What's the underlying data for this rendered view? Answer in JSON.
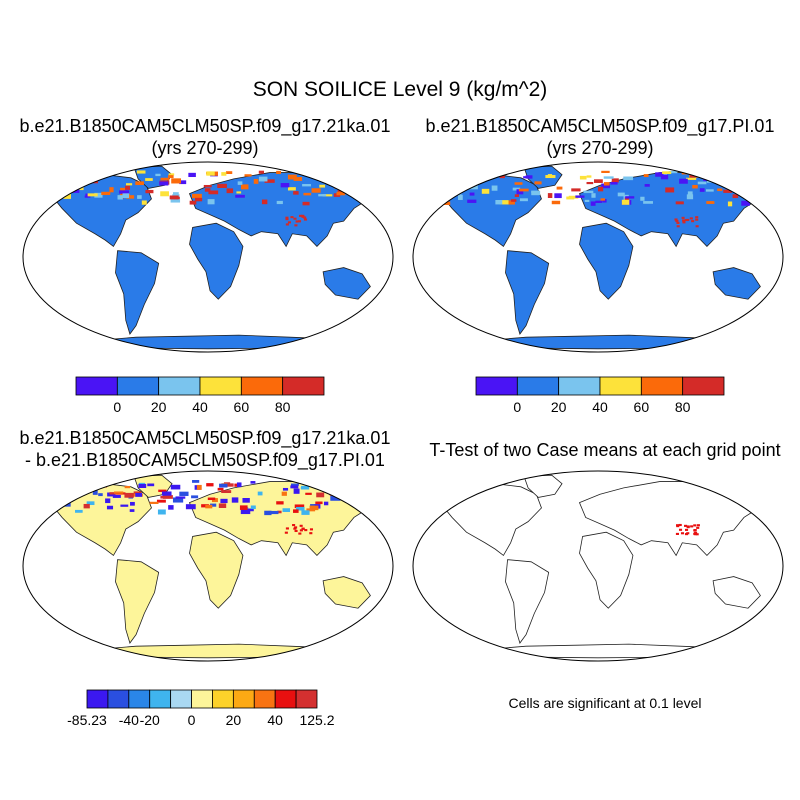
{
  "figure": {
    "title": "SON SOILICE Level 9 (kg/m^2)"
  },
  "panels": [
    {
      "id": "case1",
      "title_line1": "b.e21.B1850CAM5CLM50SP.f09_g17.21ka.01",
      "title_line2": "(yrs 270-299)",
      "colorbar": {
        "colors": [
          "#4a14f5",
          "#2a7be8",
          "#7ac4ee",
          "#fde23a",
          "#fb6a0a",
          "#d42b28"
        ],
        "tick_labels": [
          "0",
          "20",
          "40",
          "60",
          "80"
        ]
      }
    },
    {
      "id": "case2",
      "title_line1": "b.e21.B1850CAM5CLM50SP.f09_g17.PI.01",
      "title_line2": "(yrs 270-299)",
      "colorbar": {
        "colors": [
          "#4a14f5",
          "#2a7be8",
          "#7ac4ee",
          "#fde23a",
          "#fb6a0a",
          "#d42b28"
        ],
        "tick_labels": [
          "0",
          "20",
          "40",
          "60",
          "80"
        ]
      }
    },
    {
      "id": "difference",
      "title_line1": "b.e21.B1850CAM5CLM50SP.f09_g17.21ka.01",
      "title_line2": "- b.e21.B1850CAM5CLM50SP.f09_g17.PI.01",
      "colorbar": {
        "colors": [
          "#3b18f0",
          "#2a4fe0",
          "#2a86e8",
          "#3fb4ee",
          "#a9d8f2",
          "#fdf59a",
          "#fdd22a",
          "#fca914",
          "#f87312",
          "#e81010",
          "#d43030"
        ],
        "tick_labels": [
          "-85.23",
          "-40",
          "-20",
          "0",
          "20",
          "40",
          "125.2"
        ]
      }
    },
    {
      "id": "ttest",
      "title_line1": "T-Test of two Case means at each grid point",
      "note": "Cells are significant at 0.1 level"
    }
  ],
  "colors": {
    "land_cases": "#2a7be8",
    "land_difference": "#fdf59a",
    "significant": "#e81010",
    "outline": "#222222"
  }
}
